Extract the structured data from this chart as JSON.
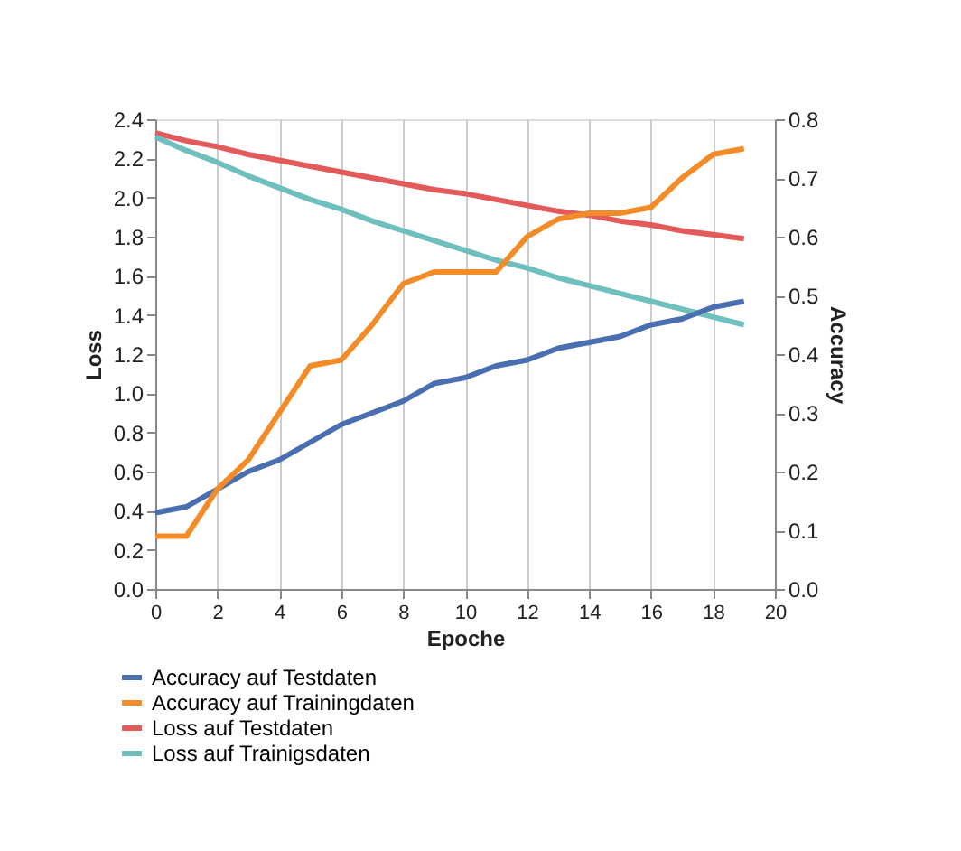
{
  "chart_data": {
    "type": "line",
    "xlabel": "Epoche",
    "ylabel": "Loss",
    "y2label": "Accuracy",
    "x": [
      0,
      1,
      2,
      3,
      4,
      5,
      6,
      7,
      8,
      9,
      10,
      11,
      12,
      13,
      14,
      15,
      16,
      17,
      18,
      19
    ],
    "series": [
      {
        "name": "Accuracy auf Testdaten",
        "color": "#4a6fb0",
        "axis": "y2",
        "values": [
          0.13,
          0.14,
          0.17,
          0.2,
          0.22,
          0.25,
          0.28,
          0.3,
          0.32,
          0.35,
          0.36,
          0.38,
          0.39,
          0.41,
          0.42,
          0.43,
          0.45,
          0.46,
          0.48,
          0.49
        ]
      },
      {
        "name": "Accuracy auf Trainingdaten",
        "color": "#f28c28",
        "axis": "y2",
        "values": [
          0.09,
          0.09,
          0.17,
          0.22,
          0.3,
          0.38,
          0.39,
          0.45,
          0.52,
          0.54,
          0.54,
          0.54,
          0.6,
          0.63,
          0.64,
          0.64,
          0.65,
          0.7,
          0.74,
          0.75
        ]
      },
      {
        "name": "Loss auf Testdaten",
        "color": "#e35a5a",
        "values": [
          2.33,
          2.29,
          2.26,
          2.22,
          2.19,
          2.16,
          2.13,
          2.1,
          2.07,
          2.04,
          2.02,
          1.99,
          1.96,
          1.93,
          1.91,
          1.88,
          1.86,
          1.83,
          1.81,
          1.79
        ]
      },
      {
        "name": "Loss auf Trainigsdaten",
        "color": "#6fbfbf",
        "values": [
          2.31,
          2.24,
          2.18,
          2.11,
          2.05,
          1.99,
          1.94,
          1.88,
          1.83,
          1.78,
          1.73,
          1.68,
          1.64,
          1.59,
          1.55,
          1.51,
          1.47,
          1.43,
          1.39,
          1.35
        ]
      }
    ],
    "xlim": [
      0,
      20
    ],
    "xticks": [
      0,
      2,
      4,
      6,
      8,
      10,
      12,
      14,
      16,
      18,
      20
    ],
    "ylim": [
      0,
      2.4
    ],
    "yticks": [
      {
        "value": 0,
        "label": "0.0"
      },
      {
        "value": 0.2,
        "label": "0.2"
      },
      {
        "value": 0.4,
        "label": "0.4"
      },
      {
        "value": 0.6,
        "label": "0.6"
      },
      {
        "value": 0.8,
        "label": "0.8"
      },
      {
        "value": 1,
        "label": "1.0"
      },
      {
        "value": 1.2,
        "label": "1.2"
      },
      {
        "value": 1.4,
        "label": "1.4"
      },
      {
        "value": 1.6,
        "label": "1.6"
      },
      {
        "value": 1.8,
        "label": "1.8"
      },
      {
        "value": 2,
        "label": "2.0"
      },
      {
        "value": 2.2,
        "label": "2.2"
      },
      {
        "value": 2.4,
        "label": "2.4"
      }
    ],
    "y2lim": [
      0,
      0.8
    ],
    "y2ticks": [
      {
        "value": 0,
        "label": "0.0"
      },
      {
        "value": 0.1,
        "label": "0.1"
      },
      {
        "value": 0.2,
        "label": "0.2"
      },
      {
        "value": 0.3,
        "label": "0.3"
      },
      {
        "value": 0.4,
        "label": "0.4"
      },
      {
        "value": 0.5,
        "label": "0.5"
      },
      {
        "value": 0.6,
        "label": "0.6"
      },
      {
        "value": 0.7,
        "label": "0.7"
      },
      {
        "value": 0.8,
        "label": "0.8"
      }
    ],
    "grid": "x",
    "legend": "bottom left",
    "line_style": "solid",
    "marker": "none"
  }
}
